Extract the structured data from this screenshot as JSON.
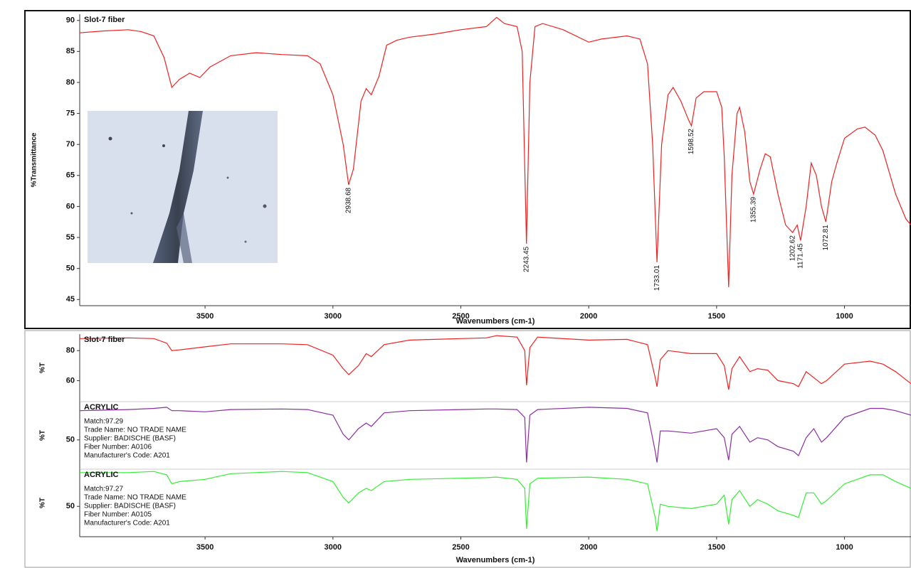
{
  "chart_data": [
    {
      "type": "line",
      "xlabel": "Wavenumbers (cm-1)",
      "ylabel": "%Transmittance",
      "xlim": [
        3990,
        740
      ],
      "ylim": [
        44,
        91
      ],
      "xticks": [
        3500,
        3000,
        2500,
        2000,
        1500,
        1000
      ],
      "yticks": [
        45,
        50,
        55,
        60,
        65,
        70,
        75,
        80,
        85,
        90
      ],
      "x": [
        3990,
        3900,
        3800,
        3750,
        3700,
        3660,
        3630,
        3600,
        3560,
        3520,
        3480,
        3400,
        3300,
        3200,
        3100,
        3050,
        3000,
        2960,
        2938.68,
        2920,
        2890,
        2870,
        2850,
        2820,
        2790,
        2750,
        2700,
        2600,
        2500,
        2400,
        2360,
        2330,
        2280,
        2260,
        2243.45,
        2230,
        2210,
        2180,
        2100,
        2000,
        1950,
        1850,
        1800,
        1770,
        1750,
        1733.01,
        1715,
        1690,
        1670,
        1640,
        1610,
        1598.52,
        1580,
        1550,
        1500,
        1480,
        1470,
        1453,
        1440,
        1420,
        1410,
        1390,
        1370,
        1355.39,
        1330,
        1310,
        1290,
        1260,
        1230,
        1202.62,
        1185,
        1171.45,
        1150,
        1130,
        1110,
        1090,
        1072.81,
        1050,
        1030,
        1000,
        950,
        920,
        880,
        850,
        800,
        760,
        740
      ],
      "series": [
        {
          "name": "Slot-7 fiber",
          "color": "#ee2222",
          "values": [
            88,
            88.3,
            88.5,
            88.2,
            87.5,
            84,
            79.2,
            80.5,
            81.5,
            80.8,
            82.5,
            84.3,
            84.8,
            84.5,
            84.3,
            83,
            78,
            70,
            63.5,
            66,
            77,
            79,
            78,
            81,
            86,
            86.8,
            87.3,
            87.8,
            88.5,
            89,
            90.5,
            89.5,
            89,
            85,
            54,
            80,
            89,
            89.5,
            88.5,
            86.5,
            87,
            87.5,
            87,
            83,
            70,
            51,
            70,
            78,
            79.2,
            77,
            74,
            73,
            77.5,
            78.5,
            78.5,
            76,
            68,
            47,
            65,
            75,
            76,
            72,
            64,
            62,
            66,
            68.5,
            68,
            62,
            57,
            55.8,
            57,
            54.5,
            60,
            67,
            65,
            60,
            57.5,
            64,
            67,
            71,
            72.5,
            72.8,
            71.5,
            69,
            62,
            58,
            57
          ]
        }
      ],
      "peaks": [
        2938.68,
        2243.45,
        1733.01,
        1598.52,
        1355.39,
        1202.62,
        1171.45,
        1072.81
      ]
    },
    {
      "type": "line",
      "ylabel": "%T",
      "xlim": [
        3990,
        740
      ],
      "ylim": [
        46,
        91
      ],
      "yticks": [
        60,
        80
      ],
      "x": [
        3990,
        3800,
        3700,
        3650,
        3630,
        3600,
        3500,
        3400,
        3200,
        3100,
        3000,
        2960,
        2938,
        2900,
        2870,
        2850,
        2800,
        2700,
        2500,
        2400,
        2360,
        2280,
        2250,
        2243,
        2230,
        2200,
        2000,
        1850,
        1770,
        1740,
        1733,
        1720,
        1690,
        1600,
        1500,
        1470,
        1453,
        1440,
        1410,
        1370,
        1340,
        1300,
        1260,
        1200,
        1180,
        1150,
        1120,
        1090,
        1070,
        1000,
        900,
        850,
        800,
        740
      ],
      "series": [
        {
          "name": "Slot-7 fiber",
          "color": "#ee2222",
          "values": [
            88,
            88.5,
            88,
            85,
            80,
            80.5,
            82.5,
            84.5,
            84.5,
            84,
            77,
            68,
            64,
            70,
            78,
            76,
            84,
            87,
            88,
            88.5,
            90,
            89,
            80,
            57,
            82,
            89,
            87,
            87.5,
            84,
            62,
            56,
            74,
            80,
            78,
            78,
            70,
            54,
            68,
            76,
            66,
            68,
            67,
            60,
            58,
            56,
            66,
            62,
            58,
            60,
            71,
            73,
            71,
            66,
            58
          ]
        }
      ]
    },
    {
      "type": "line",
      "ylabel": "%T",
      "xlim": [
        3990,
        740
      ],
      "ylim": [
        24,
        84
      ],
      "yticks": [
        50
      ],
      "x": [
        3990,
        3800,
        3700,
        3650,
        3630,
        3600,
        3500,
        3400,
        3200,
        3100,
        3000,
        2960,
        2938,
        2900,
        2870,
        2850,
        2800,
        2700,
        2500,
        2400,
        2360,
        2280,
        2250,
        2243,
        2230,
        2200,
        2000,
        1850,
        1770,
        1740,
        1733,
        1720,
        1690,
        1600,
        1500,
        1470,
        1453,
        1440,
        1410,
        1370,
        1340,
        1300,
        1260,
        1200,
        1180,
        1150,
        1120,
        1090,
        1070,
        1000,
        900,
        850,
        800,
        740
      ],
      "series": [
        {
          "name": "ACRYLIC",
          "color": "#8a2fa0",
          "values": [
            76,
            77,
            78,
            79,
            76,
            76,
            75,
            77,
            77.5,
            77,
            72,
            55,
            50,
            60,
            65,
            62,
            74,
            76,
            77,
            77.5,
            77.5,
            77,
            70,
            30,
            72,
            77,
            79,
            78,
            74,
            40,
            30,
            58,
            58,
            56,
            60,
            52,
            32,
            55,
            62,
            48,
            52,
            50,
            44,
            40,
            36,
            52,
            60,
            48,
            52,
            70,
            78,
            78,
            76,
            72
          ]
        }
      ],
      "notes": [
        "Match:97.29",
        "Trade Name:  NO TRADE NAME",
        "Supplier:  BADISCHE (BASF)",
        "Fiber Number:  A0106",
        "Manufacturer's Code:  A201"
      ]
    },
    {
      "type": "line",
      "ylabel": "%T",
      "xlabel": "Wavenumbers (cm-1)",
      "xlim": [
        3990,
        740
      ],
      "ylim": [
        23,
        83
      ],
      "yticks": [
        50
      ],
      "xticks": [
        3500,
        3000,
        2500,
        2000,
        1500,
        1000
      ],
      "x": [
        3990,
        3800,
        3700,
        3650,
        3630,
        3600,
        3500,
        3400,
        3200,
        3100,
        3000,
        2960,
        2938,
        2900,
        2870,
        2850,
        2800,
        2700,
        2500,
        2400,
        2360,
        2280,
        2250,
        2243,
        2230,
        2200,
        2000,
        1850,
        1770,
        1740,
        1733,
        1720,
        1690,
        1600,
        1500,
        1470,
        1453,
        1440,
        1410,
        1370,
        1340,
        1300,
        1260,
        1200,
        1180,
        1150,
        1120,
        1090,
        1070,
        1000,
        900,
        850,
        800,
        740
      ],
      "series": [
        {
          "name": "ACRYLIC",
          "color": "#33ee33",
          "values": [
            80,
            80,
            81,
            78,
            70,
            72,
            74,
            79,
            81,
            80,
            72,
            58,
            53,
            62,
            66,
            64,
            72,
            74,
            75,
            75.5,
            76,
            74,
            66,
            30,
            70,
            75,
            76,
            74,
            70,
            40,
            28,
            52,
            50,
            48,
            52,
            60,
            34,
            56,
            64,
            50,
            56,
            52,
            46,
            42,
            40,
            62,
            62,
            52,
            55,
            70,
            78,
            78,
            72,
            66
          ]
        }
      ],
      "notes": [
        "Match:97.27",
        "Trade Name:  NO TRADE NAME",
        "Supplier:  BADISCHE (BASF)",
        "Fiber Number:  A0105",
        "Manufacturer's Code:  A201"
      ]
    }
  ]
}
